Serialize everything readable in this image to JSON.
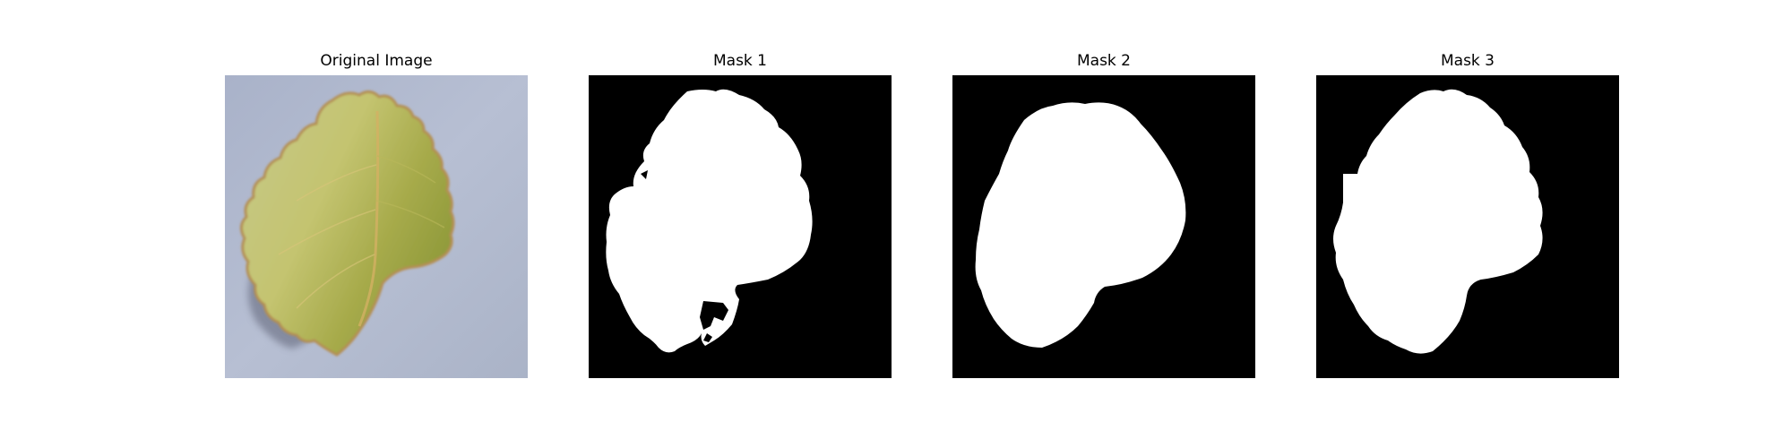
{
  "figure": {
    "panels": [
      {
        "id": "original",
        "title": "Original Image"
      },
      {
        "id": "mask1",
        "title": "Mask 1"
      },
      {
        "id": "mask2",
        "title": "Mask 2"
      },
      {
        "id": "mask3",
        "title": "Mask 3"
      }
    ]
  },
  "colors": {
    "background": "#b4bdd2",
    "leaf_light": "#c9c97a",
    "leaf_dark": "#8e9a3c",
    "leaf_edge": "#b08a4a",
    "shadow": "#6b6f80",
    "mask_fg": "#ffffff",
    "mask_bg": "#000000"
  }
}
